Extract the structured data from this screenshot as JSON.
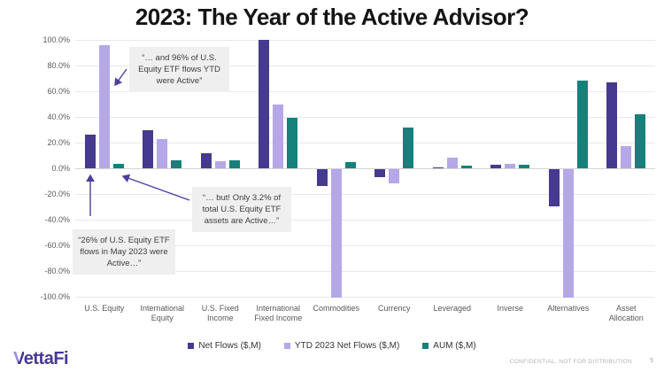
{
  "title": "2023: The Year of the Active Advisor?",
  "chart_data": {
    "type": "bar",
    "title": "2023: The Year of the Active Advisor?",
    "categories": [
      "U.S. Equity",
      "International Equity",
      "U.S. Fixed Income",
      "International Fixed Income",
      "Commodities",
      "Currency",
      "Leveraged",
      "Inverse",
      "Alternatives",
      "Asset Allocation"
    ],
    "series": [
      {
        "name": "Net Flows ($,M)",
        "color": "#453a8e",
        "values": [
          26,
          30,
          12,
          100,
          -13,
          -6,
          1,
          3,
          -29,
          67
        ]
      },
      {
        "name": "YTD 2023 Net Flows ($,M)",
        "color": "#b5a7e8",
        "values": [
          96,
          23,
          5.5,
          50,
          -100,
          -11,
          8,
          3.5,
          -100,
          17
        ]
      },
      {
        "name": "AUM ($,M)",
        "color": "#15817a",
        "values": [
          3.2,
          6,
          6.5,
          39,
          5,
          32,
          2,
          2.5,
          68,
          42
        ]
      }
    ],
    "ylim": [
      -100,
      100
    ],
    "ytick_labels": [
      "100.0%",
      "80.0%",
      "60.0%",
      "40.0%",
      "20.0%",
      "0.0%",
      "-20.0%",
      "-40.0%",
      "-60.0%",
      "-80.0%",
      "-100.0%"
    ],
    "grid": "horizontal",
    "legend_position": "bottom"
  },
  "annotations": {
    "note_ytd": "“… and 96% of U.S. Equity ETF flows YTD were Active”",
    "note_aum": "“… but! Only 3.2% of total U.S. Equity ETF assets are Active…”",
    "note_flows": "“26% of U.S. Equity ETF flows in May 2023 were Active…”"
  },
  "footer": {
    "logo_v": "V",
    "logo_rest": "ettaFi",
    "confidential": "CONFIDENTIAL, NOT FOR DISTRIBUTION",
    "page": "5"
  }
}
